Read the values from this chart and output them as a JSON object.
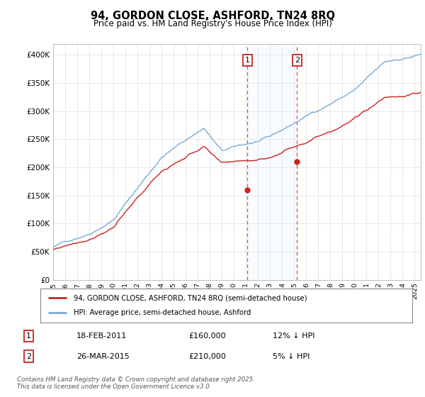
{
  "title_line1": "94, GORDON CLOSE, ASHFORD, TN24 8RQ",
  "title_line2": "Price paid vs. HM Land Registry's House Price Index (HPI)",
  "ylim": [
    0,
    420000
  ],
  "yticks": [
    0,
    50000,
    100000,
    150000,
    200000,
    250000,
    300000,
    350000,
    400000
  ],
  "ytick_labels": [
    "£0",
    "£50K",
    "£100K",
    "£150K",
    "£200K",
    "£250K",
    "£300K",
    "£350K",
    "£400K"
  ],
  "hpi_color": "#7aaad4",
  "price_color": "#cc2222",
  "vline_color": "#cc3333",
  "shade_color": "#ddeeff",
  "transaction1_x": 2011.12,
  "transaction1_y": 160000,
  "transaction2_x": 2015.23,
  "transaction2_y": 210000,
  "legend_line1": "94, GORDON CLOSE, ASHFORD, TN24 8RQ (semi-detached house)",
  "legend_line2": "HPI: Average price, semi-detached house, Ashford",
  "table_row1": [
    "1",
    "18-FEB-2011",
    "£160,000",
    "12% ↓ HPI"
  ],
  "table_row2": [
    "2",
    "26-MAR-2015",
    "£210,000",
    "5% ↓ HPI"
  ],
  "footnote": "Contains HM Land Registry data © Crown copyright and database right 2025.\nThis data is licensed under the Open Government Licence v3.0.",
  "background_color": "#ffffff",
  "grid_color": "#dddddd",
  "xlim_start": 1995.0,
  "xlim_end": 2025.5
}
